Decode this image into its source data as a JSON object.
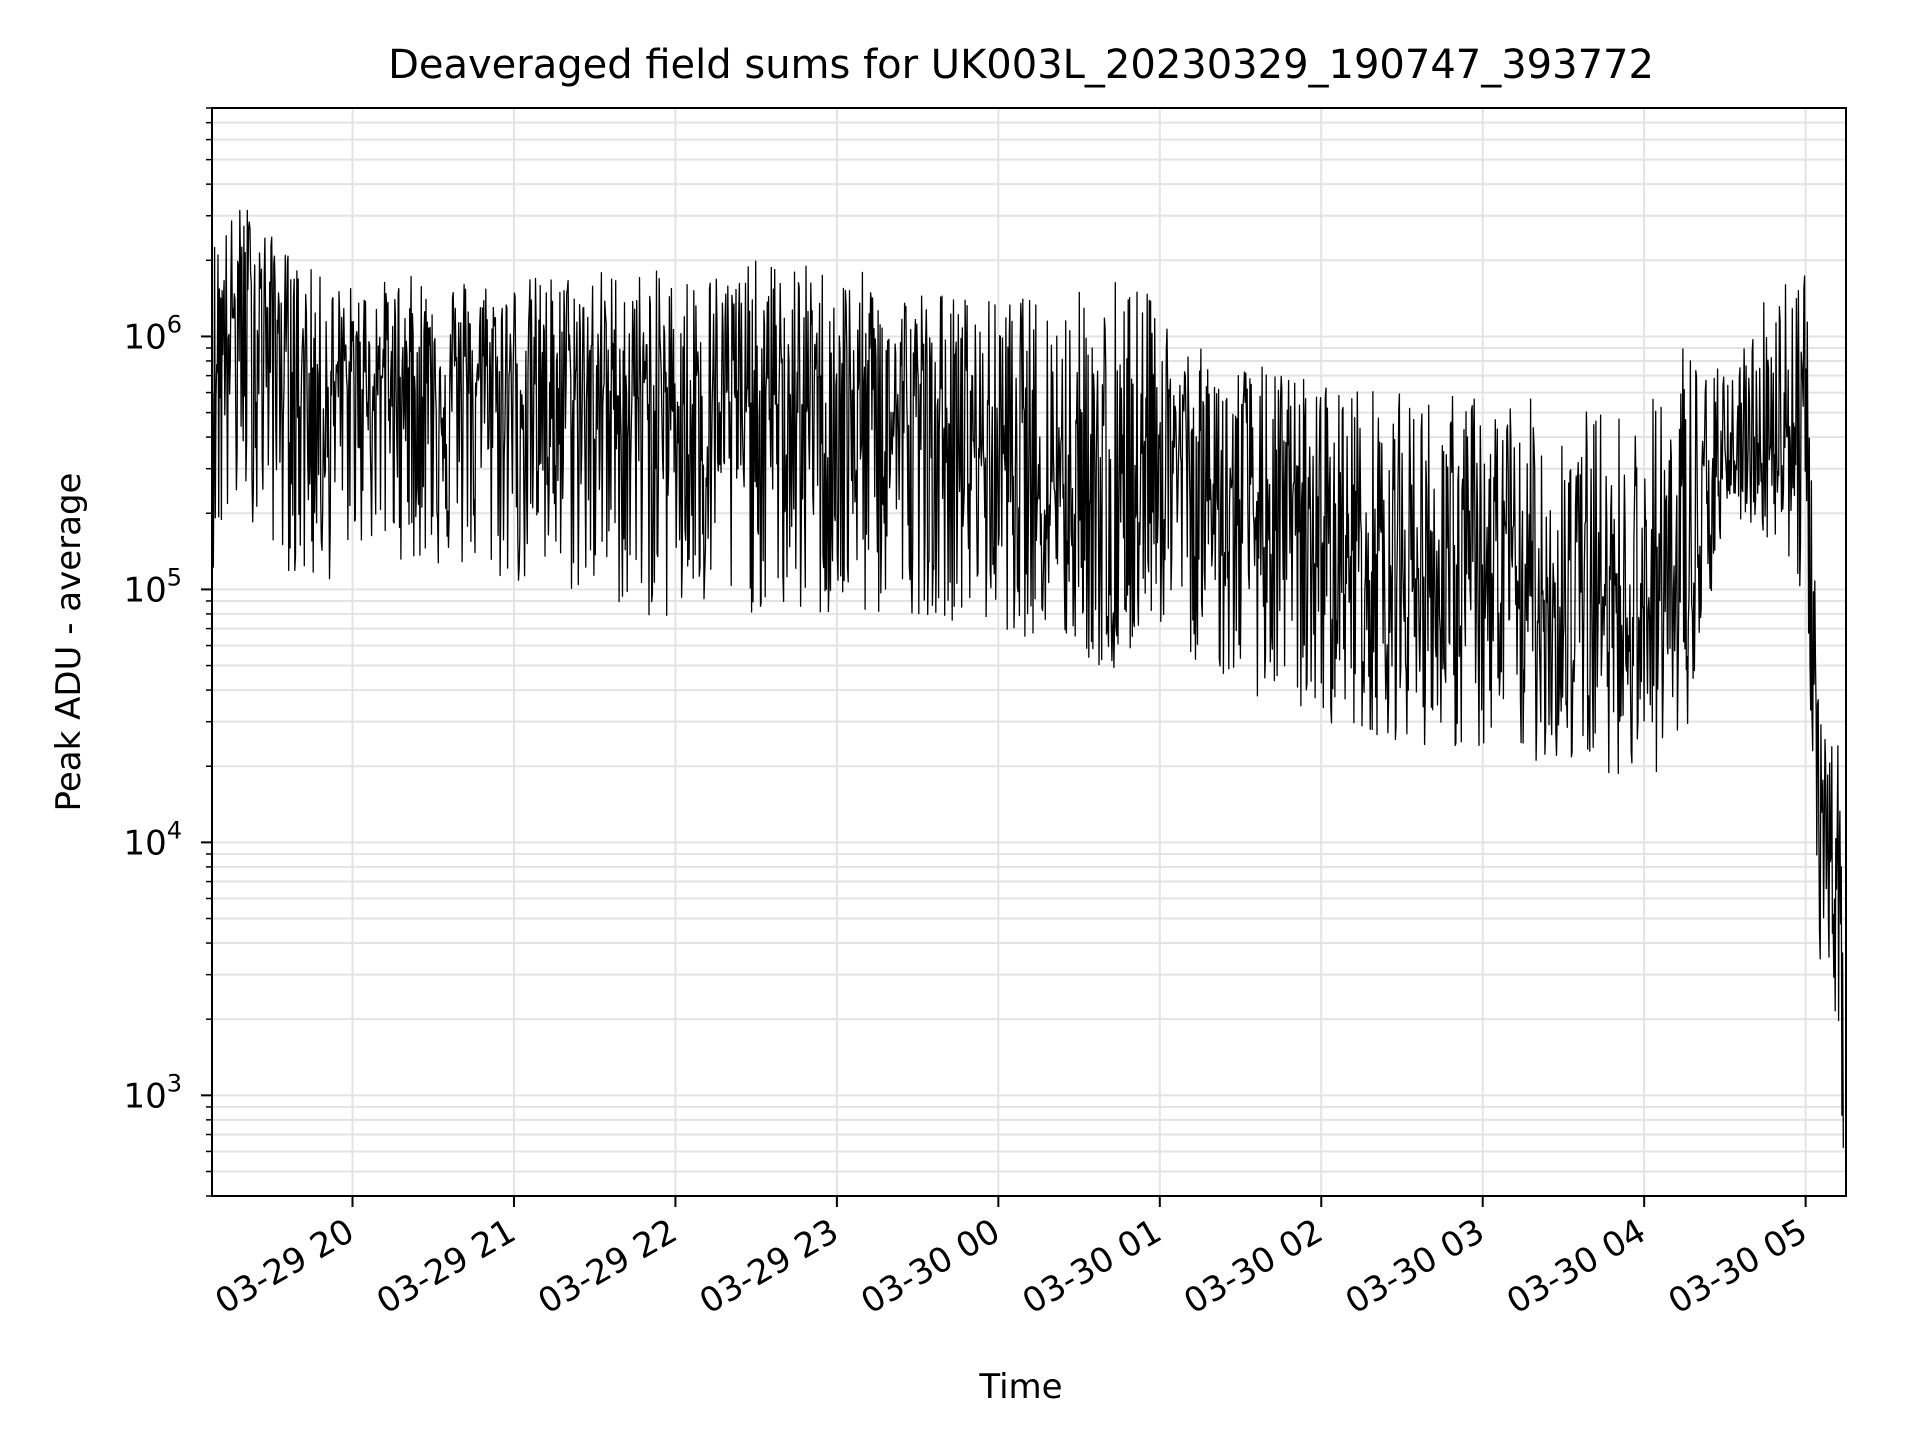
{
  "chart_data": {
    "type": "line",
    "title": "Deaveraged field sums for UK003L_20230329_190747_393772",
    "xlabel": "Time",
    "ylabel": "Peak ADU - average",
    "yscale": "log",
    "grid": true,
    "xlim": [
      "03-29 19:07:47",
      "03-30 05:15:00"
    ],
    "ylim": [
      400,
      8000000
    ],
    "x_ticks": [
      "03-29 20",
      "03-29 21",
      "03-29 22",
      "03-29 23",
      "03-30 00",
      "03-30 01",
      "03-30 02",
      "03-30 03",
      "03-30 04",
      "03-30 05"
    ],
    "x_tick_times": [
      "03-29 20:00",
      "03-29 21:00",
      "03-29 22:00",
      "03-29 23:00",
      "03-30 00:00",
      "03-30 01:00",
      "03-30 02:00",
      "03-30 03:00",
      "03-30 04:00",
      "03-30 05:00"
    ],
    "y_ticks": [
      {
        "base": "10",
        "exp": "3",
        "value": 1000
      },
      {
        "base": "10",
        "exp": "4",
        "value": 10000
      },
      {
        "base": "10",
        "exp": "5",
        "value": 100000
      },
      {
        "base": "10",
        "exp": "6",
        "value": 1000000
      }
    ],
    "series": [
      {
        "line_color": "#000000",
        "envelope_note_time": "time of sample",
        "x": [
          "03-29 19:08",
          "03-29 19:20",
          "03-29 19:30",
          "03-29 19:40",
          "03-29 19:50",
          "03-29 20:00",
          "03-29 20:30",
          "03-29 21:00",
          "03-29 21:30",
          "03-29 22:00",
          "03-29 22:30",
          "03-29 23:00",
          "03-29 23:30",
          "03-30 00:00",
          "03-30 00:20",
          "03-30 00:35",
          "03-30 00:45",
          "03-30 00:55",
          "03-30 01:15",
          "03-30 01:30",
          "03-30 02:00",
          "03-30 02:30",
          "03-30 03:00",
          "03-30 03:30",
          "03-30 04:00",
          "03-30 04:15",
          "03-30 04:30",
          "03-30 04:50",
          "03-30 05:00",
          "03-30 05:05",
          "03-30 05:10",
          "03-30 05:14"
        ],
        "y": [
          1000000,
          1300000,
          1200000,
          700000,
          600000,
          700000,
          700000,
          650000,
          600000,
          550000,
          550000,
          500000,
          450000,
          350000,
          300000,
          250000,
          60000,
          500000,
          250000,
          200000,
          150000,
          120000,
          100000,
          90000,
          90000,
          80000,
          300000,
          400000,
          500000,
          10000,
          8000,
          8000
        ],
        "y_upper": [
          2500000,
          3500000,
          2500000,
          2000000,
          1700000,
          1600000,
          1800000,
          1700000,
          1900000,
          1800000,
          2000000,
          1900000,
          1600000,
          1400000,
          1500000,
          1600000,
          2000000,
          1500000,
          900000,
          800000,
          700000,
          600000,
          600000,
          550000,
          500000,
          1100000,
          700000,
          2000000,
          2200000,
          30000,
          25000,
          25000
        ],
        "y_lower": [
          120000,
          200000,
          150000,
          100000,
          100000,
          150000,
          120000,
          100000,
          90000,
          70000,
          80000,
          70000,
          80000,
          70000,
          60000,
          50000,
          40000,
          80000,
          50000,
          40000,
          30000,
          25000,
          22000,
          20000,
          18000,
          20000,
          200000,
          150000,
          80000,
          3500,
          3000,
          600
        ]
      }
    ]
  }
}
